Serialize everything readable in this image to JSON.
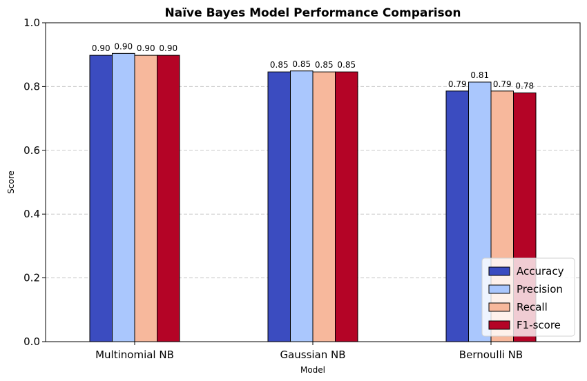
{
  "chart_data": {
    "type": "bar",
    "title": "Naïve Bayes Model Performance Comparison",
    "xlabel": "Model",
    "ylabel": "Score",
    "ylim": [
      0,
      1.0
    ],
    "yticks": [
      0.0,
      0.2,
      0.4,
      0.6,
      0.8,
      1.0
    ],
    "ytick_labels": [
      "0.0",
      "0.2",
      "0.4",
      "0.6",
      "0.8",
      "1.0"
    ],
    "grid": "y-dashed",
    "legend_position": "bottom-right",
    "categories": [
      "Multinomial NB",
      "Gaussian NB",
      "Bernoulli NB"
    ],
    "series": [
      {
        "name": "Accuracy",
        "color": "#3b4cc0",
        "values": [
          0.898,
          0.846,
          0.786
        ],
        "labels": [
          "0.90",
          "0.85",
          "0.79"
        ]
      },
      {
        "name": "Precision",
        "color": "#aac7fd",
        "values": [
          0.904,
          0.849,
          0.814
        ],
        "labels": [
          "0.90",
          "0.85",
          "0.81"
        ]
      },
      {
        "name": "Recall",
        "color": "#f7b89c",
        "values": [
          0.898,
          0.846,
          0.786
        ],
        "labels": [
          "0.90",
          "0.85",
          "0.79"
        ]
      },
      {
        "name": "F1-score",
        "color": "#b40426",
        "values": [
          0.898,
          0.846,
          0.78
        ],
        "labels": [
          "0.90",
          "0.85",
          "0.78"
        ]
      }
    ]
  }
}
